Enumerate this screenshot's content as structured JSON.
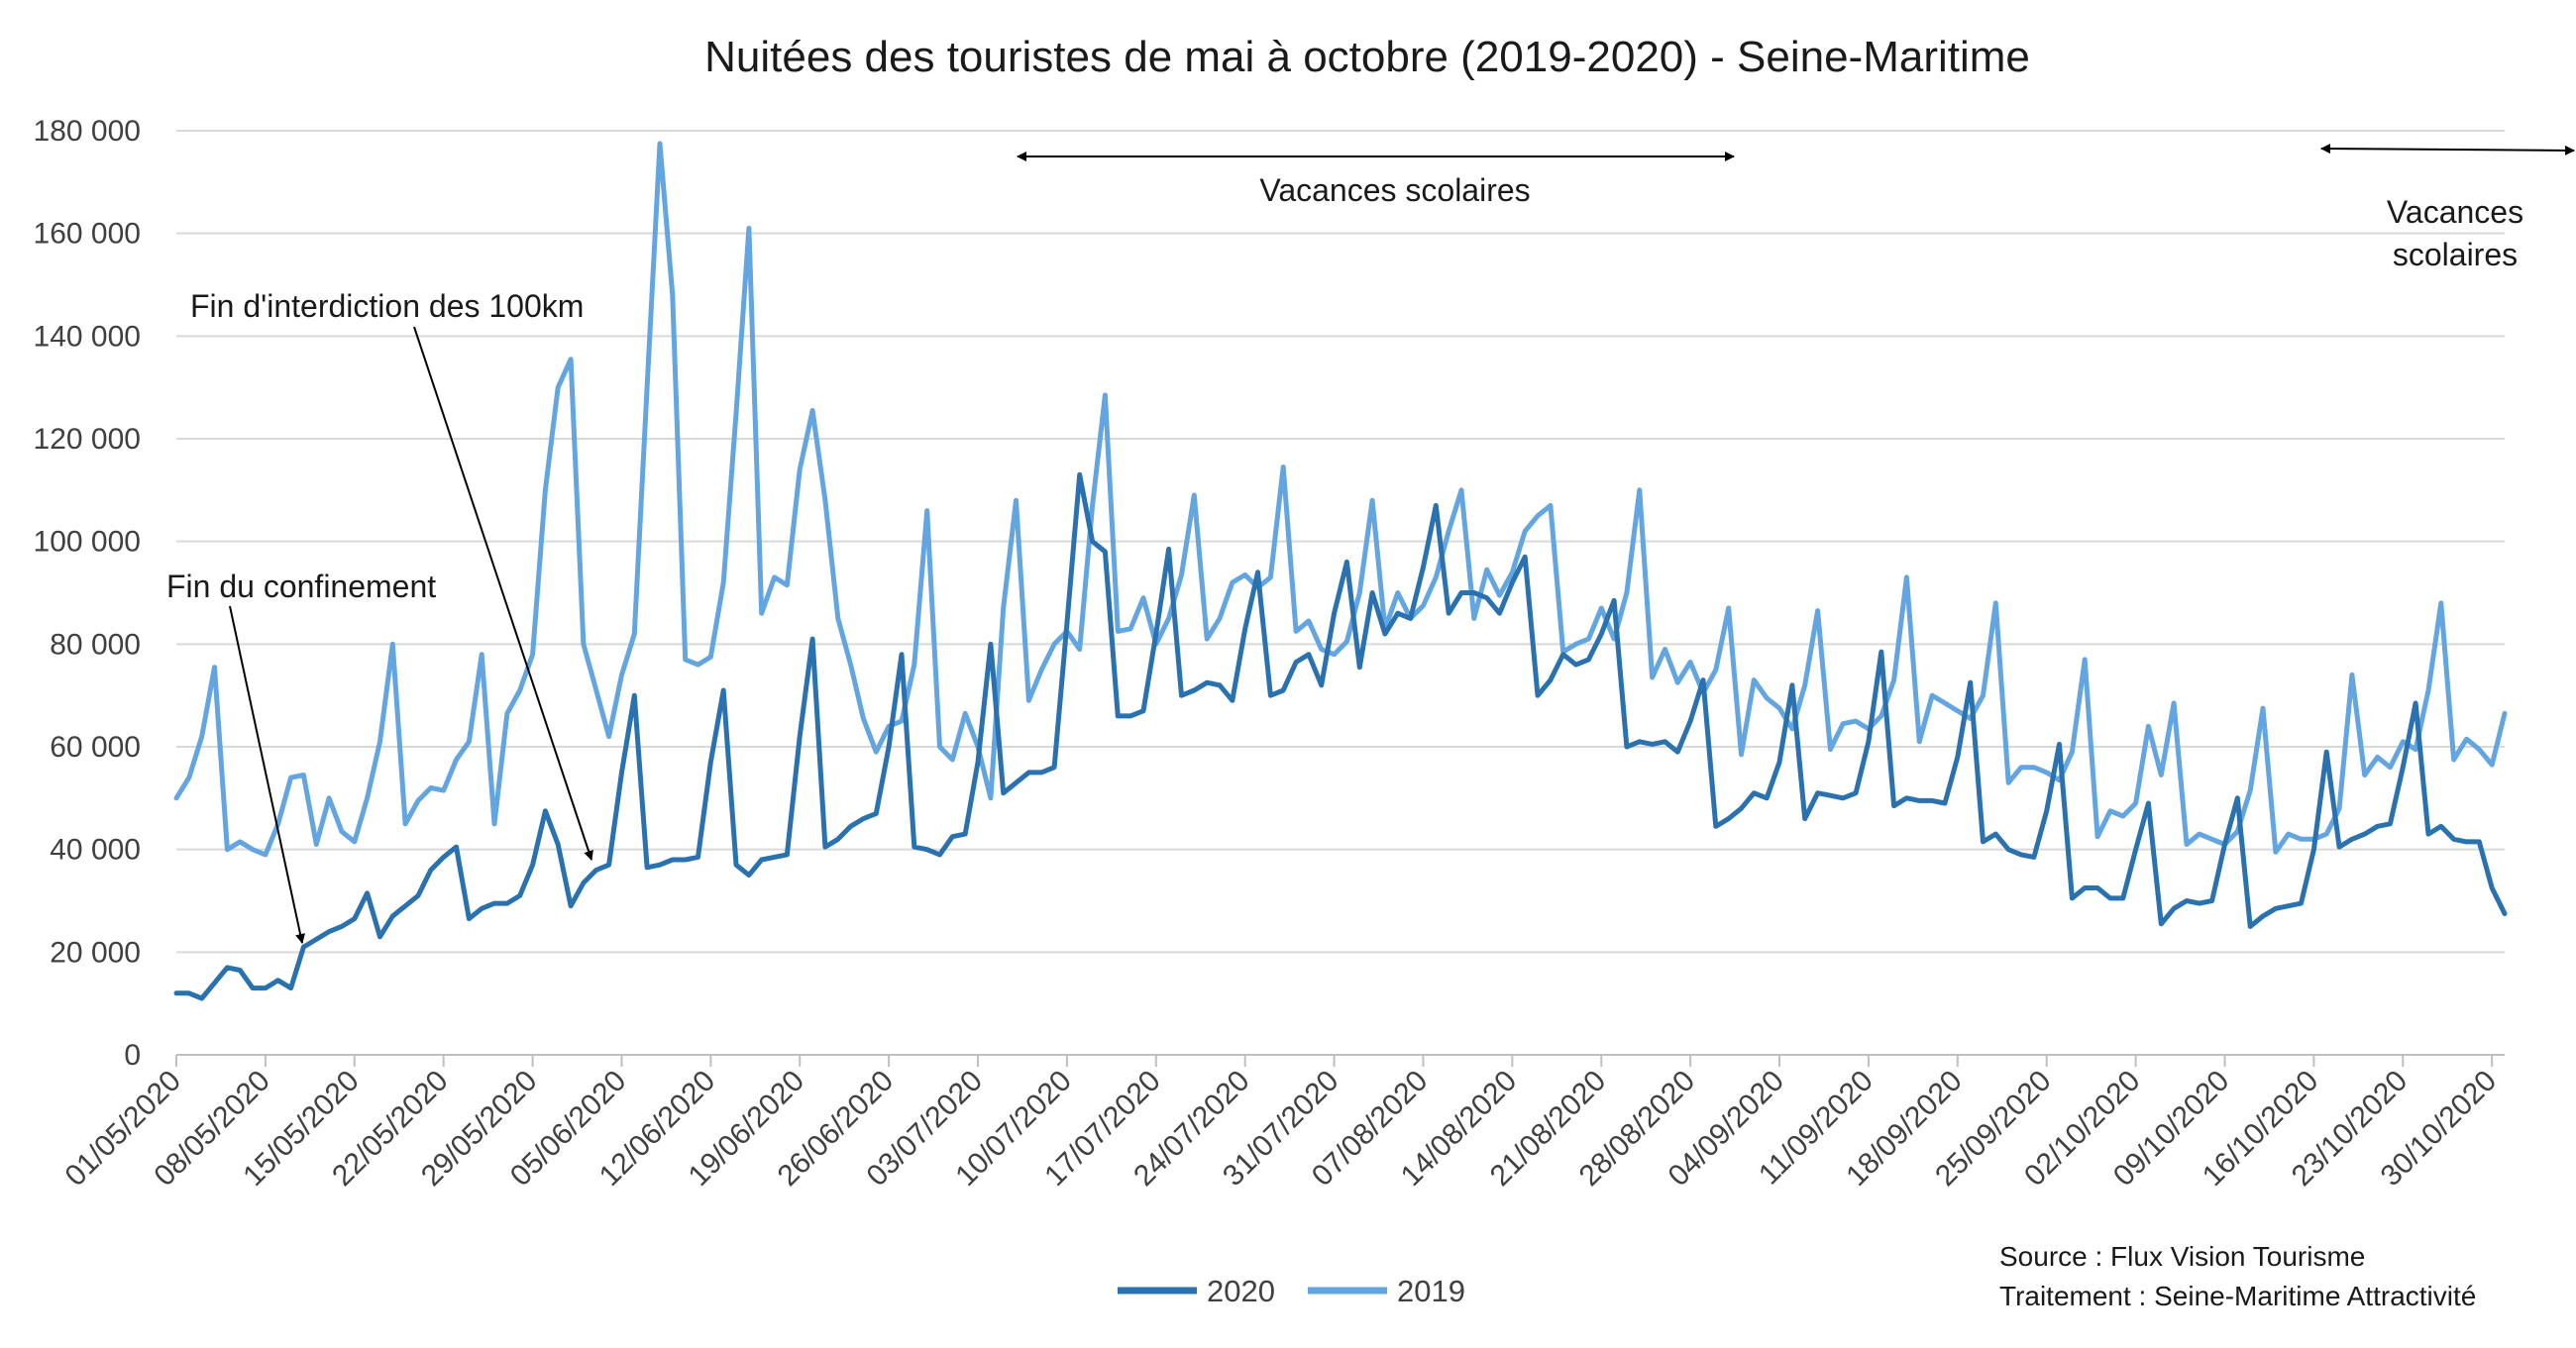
{
  "chart_data": {
    "type": "line",
    "title": "Nuitées des touristes de mai à octobre (2019-2020) - Seine-Maritime",
    "xlabel": "",
    "ylabel": "",
    "ylim": [
      0,
      180000
    ],
    "y_ticks": [
      0,
      20000,
      40000,
      60000,
      80000,
      100000,
      120000,
      140000,
      160000,
      180000
    ],
    "y_tick_labels": [
      "0",
      "20 000",
      "40 000",
      "60 000",
      "80 000",
      "100 000",
      "120 000",
      "140 000",
      "160 000",
      "180 000"
    ],
    "x_start": "01/05/2020",
    "x_end": "31/10/2020",
    "x_tick_labels": [
      "01/05/2020",
      "08/05/2020",
      "15/05/2020",
      "22/05/2020",
      "29/05/2020",
      "05/06/2020",
      "12/06/2020",
      "19/06/2020",
      "26/06/2020",
      "03/07/2020",
      "10/07/2020",
      "17/07/2020",
      "24/07/2020",
      "31/07/2020",
      "07/08/2020",
      "14/08/2020",
      "21/08/2020",
      "28/08/2020",
      "04/09/2020",
      "11/09/2020",
      "18/09/2020",
      "25/09/2020",
      "02/10/2020",
      "09/10/2020",
      "16/10/2020",
      "23/10/2020",
      "30/10/2020"
    ],
    "grid": true,
    "legend_position": "bottom",
    "series": [
      {
        "name": "2020",
        "color": "#2a71b0",
        "values": [
          12000,
          12000,
          11000,
          14000,
          17000,
          16500,
          13000,
          13000,
          14500,
          13000,
          21000,
          22500,
          24000,
          25000,
          26500,
          31500,
          23000,
          27000,
          29000,
          31000,
          36000,
          38500,
          40500,
          26500,
          28500,
          29500,
          29500,
          31000,
          37000,
          47500,
          41000,
          29000,
          33500,
          36000,
          37000,
          55000,
          70000,
          36500,
          37000,
          38000,
          38000,
          38500,
          57000,
          71000,
          37000,
          35000,
          38000,
          38500,
          39000,
          62000,
          81000,
          40500,
          42000,
          44500,
          46000,
          47000,
          60000,
          78000,
          40500,
          40000,
          39000,
          42500,
          43000,
          57000,
          80000,
          51000,
          53000,
          55000,
          55000,
          56000,
          84000,
          113000,
          100000,
          98000,
          66000,
          66000,
          67000,
          82000,
          98500,
          70000,
          71000,
          72500,
          72000,
          69000,
          83000,
          94000,
          70000,
          71000,
          76500,
          78000,
          72000,
          86000,
          96000,
          75500,
          90000,
          82000,
          86000,
          85000,
          95000,
          107000,
          86000,
          90000,
          90000,
          89000,
          86000,
          92000,
          97000,
          70000,
          73000,
          78000,
          76000,
          77000,
          82000,
          88500,
          60000,
          61000,
          60500,
          61000,
          59000,
          65000,
          73000,
          44500,
          46000,
          48000,
          51000,
          50000,
          57000,
          72000,
          46000,
          51000,
          50500,
          50000,
          51000,
          61000,
          78500,
          48500,
          50000,
          49500,
          49500,
          49000,
          58000,
          72500,
          41500,
          43000,
          40000,
          39000,
          38500,
          47500,
          60500,
          30500,
          32500,
          32500,
          30500,
          30500,
          40000,
          49000,
          25500,
          28500,
          30000,
          29500,
          30000,
          41000,
          50000,
          25000,
          27000,
          28500,
          29000,
          29500,
          40000,
          59000,
          40500,
          42000,
          43000,
          44500,
          45000,
          56000,
          68500,
          43000,
          44500,
          42000,
          41500,
          41500,
          32500,
          27500
        ]
      },
      {
        "name": "2019",
        "color": "#62a5e0",
        "values": [
          50000,
          54000,
          62000,
          75500,
          40000,
          41500,
          40000,
          39000,
          45000,
          54000,
          54500,
          41000,
          50000,
          43500,
          41500,
          50000,
          61000,
          80000,
          45000,
          49500,
          52000,
          51500,
          57500,
          61000,
          78000,
          45000,
          66500,
          71000,
          78000,
          110000,
          130000,
          135500,
          80000,
          71000,
          62000,
          74000,
          82000,
          130000,
          177500,
          148000,
          77000,
          76000,
          77500,
          92000,
          125000,
          161000,
          86000,
          93000,
          91500,
          114000,
          125500,
          108000,
          85000,
          76000,
          65500,
          59000,
          64000,
          65000,
          76000,
          106000,
          60000,
          57500,
          66500,
          60000,
          50000,
          87000,
          108000,
          69000,
          75000,
          80000,
          82500,
          79000,
          107000,
          128500,
          82500,
          83000,
          89000,
          80000,
          85000,
          93500,
          109000,
          81000,
          85000,
          92000,
          93500,
          91000,
          93000,
          114500,
          82500,
          84500,
          79000,
          78000,
          80500,
          90000,
          108000,
          83000,
          90000,
          85000,
          87500,
          93000,
          102000,
          110000,
          85000,
          94500,
          89500,
          94000,
          102000,
          105000,
          107000,
          78500,
          80000,
          81000,
          87000,
          81000,
          90000,
          110000,
          73500,
          79000,
          72500,
          76500,
          70500,
          75000,
          87000,
          58500,
          73000,
          69500,
          67500,
          63500,
          72000,
          86500,
          59500,
          64500,
          65000,
          63500,
          66000,
          73000,
          93000,
          61000,
          70000,
          68500,
          67000,
          65500,
          70000,
          88000,
          53000,
          56000,
          56000,
          55000,
          53500,
          59000,
          77000,
          42500,
          47500,
          46500,
          49000,
          64000,
          54500,
          68500,
          41000,
          43000,
          42000,
          41000,
          43500,
          51500,
          67500,
          39500,
          43000,
          42000,
          42000,
          43000,
          48000,
          74000,
          54500,
          58000,
          56000,
          61000,
          59500,
          71000,
          88000,
          57500,
          61500,
          59500,
          56500,
          66500
        ]
      }
    ],
    "annotations": {
      "confinement": "Fin du confinement",
      "interdiction": "Fin d'interdiction des 100km",
      "vacances1": "Vacances scolaires",
      "vacances2_line1": "Vacances",
      "vacances2_line2": "scolaires"
    },
    "source_line1": "Source : Flux Vision Tourisme",
    "source_line2": "Traitement : Seine-Maritime Attractivité"
  }
}
